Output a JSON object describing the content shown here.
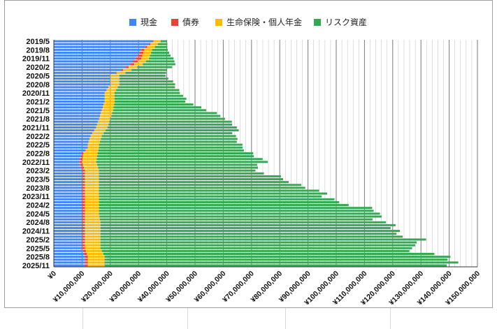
{
  "chart_data": {
    "type": "bar",
    "orientation": "horizontal",
    "stacked": true,
    "legend_position": "top",
    "legend": [
      {
        "name": "現金",
        "color": "#4285f4"
      },
      {
        "name": "債券",
        "color": "#ea4335"
      },
      {
        "name": "生命保険・個人年金",
        "color": "#fbbc04"
      },
      {
        "name": "リスク資産",
        "color": "#34a853"
      }
    ],
    "xlim": [
      0,
      150000000
    ],
    "x_ticks": [
      0,
      10000000,
      20000000,
      30000000,
      40000000,
      50000000,
      60000000,
      70000000,
      80000000,
      90000000,
      100000000,
      110000000,
      120000000,
      130000000,
      140000000,
      150000000
    ],
    "x_tick_labels": [
      "¥0",
      "¥10,000,000",
      "¥20,000,000",
      "¥30,000,000",
      "¥40,000,000",
      "¥50,000,000",
      "¥60,000,000",
      "¥70,000,000",
      "¥80,000,000",
      "¥90,000,000",
      "¥100,000,000",
      "¥110,000,000",
      "¥120,000,000",
      "¥130,000,000",
      "¥140,000,000",
      "¥150,000,000"
    ],
    "y_tick_labels": [
      "2019/5",
      "2019/8",
      "2019/11",
      "2020/2",
      "2020/5",
      "2020/8",
      "2020/11",
      "2021/2",
      "2021/5",
      "2021/8",
      "2021/11",
      "2022/2",
      "2022/5",
      "2022/8",
      "2022/11",
      "2023/2",
      "2023/5",
      "2023/8",
      "2023/11",
      "2024/2",
      "2024/5",
      "2024/8",
      "2024/11",
      "2025/2",
      "2025/5",
      "2025/8",
      "2025/11"
    ],
    "grid": true,
    "anchors": [
      {
        "month": 0,
        "cash": 35000000,
        "bond": 300000,
        "ins": 2500000,
        "risk": 2200000
      },
      {
        "month": 3,
        "cash": 31000000,
        "bond": 1000000,
        "ins": 2800000,
        "risk": 5500000
      },
      {
        "month": 6,
        "cash": 29000000,
        "bond": 2000000,
        "ins": 2700000,
        "risk": 8500000
      },
      {
        "month": 8,
        "cash": 27000000,
        "bond": 1500000,
        "ins": 3000000,
        "risk": 11500000
      },
      {
        "month": 10,
        "cash": 24000000,
        "bond": 500000,
        "ins": 3000000,
        "risk": 13000000
      },
      {
        "month": 12,
        "cash": 20000000,
        "bond": 0,
        "ins": 3200000,
        "risk": 16000000
      },
      {
        "month": 15,
        "cash": 20000000,
        "bond": 0,
        "ins": 3200000,
        "risk": 20000000
      },
      {
        "month": 18,
        "cash": 18000000,
        "bond": 0,
        "ins": 3500000,
        "risk": 23000000
      },
      {
        "month": 21,
        "cash": 18000000,
        "bond": 0,
        "ins": 3500000,
        "risk": 26000000
      },
      {
        "month": 24,
        "cash": 17000000,
        "bond": 0,
        "ins": 4000000,
        "risk": 33000000
      },
      {
        "month": 27,
        "cash": 16000000,
        "bond": 0,
        "ins": 4000000,
        "risk": 42000000
      },
      {
        "month": 30,
        "cash": 15000000,
        "bond": 0,
        "ins": 4000000,
        "risk": 45000000
      },
      {
        "month": 33,
        "cash": 13000000,
        "bond": 0,
        "ins": 4000000,
        "risk": 48000000
      },
      {
        "month": 36,
        "cash": 12000000,
        "bond": 0,
        "ins": 4000000,
        "risk": 49000000
      },
      {
        "month": 37,
        "cash": 12000000,
        "bond": 0,
        "ins": 4000000,
        "risk": 51000000
      },
      {
        "month": 39,
        "cash": 10000000,
        "bond": 500000,
        "ins": 5000000,
        "risk": 55000000
      },
      {
        "month": 42,
        "cash": 9000000,
        "bond": 1000000,
        "ins": 5000000,
        "risk": 59000000
      },
      {
        "month": 45,
        "cash": 10000000,
        "bond": 1000000,
        "ins": 5000000,
        "risk": 56000000
      },
      {
        "month": 48,
        "cash": 10000000,
        "bond": 1000000,
        "ins": 5000000,
        "risk": 65000000
      },
      {
        "month": 51,
        "cash": 10000000,
        "bond": 1000000,
        "ins": 5000000,
        "risk": 75000000
      },
      {
        "month": 54,
        "cash": 10000000,
        "bond": 1000000,
        "ins": 5000000,
        "risk": 80000000
      },
      {
        "month": 57,
        "cash": 10000000,
        "bond": 1000000,
        "ins": 5000000,
        "risk": 90000000
      },
      {
        "month": 60,
        "cash": 10000000,
        "bond": 1000000,
        "ins": 5000000,
        "risk": 100000000
      },
      {
        "month": 63,
        "cash": 10000000,
        "bond": 1000000,
        "ins": 5500000,
        "risk": 100000000
      },
      {
        "month": 66,
        "cash": 10000000,
        "bond": 1000000,
        "ins": 5500000,
        "risk": 105000000
      },
      {
        "month": 69,
        "cash": 10000000,
        "bond": 1000000,
        "ins": 5500000,
        "risk": 112000000
      },
      {
        "month": 72,
        "cash": 10000000,
        "bond": 1000000,
        "ins": 5500000,
        "risk": 110000000
      },
      {
        "month": 75,
        "cash": 11000000,
        "bond": 1000000,
        "ins": 6000000,
        "risk": 120000000
      },
      {
        "month": 78,
        "cash": 11000000,
        "bond": 1000000,
        "ins": 6000000,
        "risk": 124000000
      }
    ]
  }
}
